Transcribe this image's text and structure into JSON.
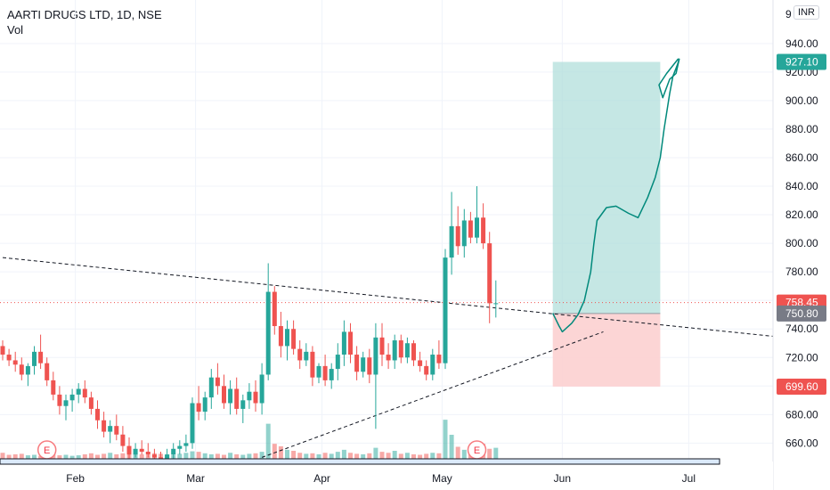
{
  "header": {
    "symbol": "AARTI DRUGS LTD, 1D, NSE",
    "volume_label": "Vol"
  },
  "currency_label": "INR",
  "price_axis_top_partial": "9",
  "colors": {
    "up": "#26a69a",
    "down": "#ef5350",
    "target_zone": "#b2dfdb",
    "stop_zone": "#fcd0d0",
    "last_price_tag": "#ef5350",
    "entry_tag": "#787b86"
  },
  "chart_data": {
    "type": "candlestick",
    "title": "AARTI DRUGS LTD, 1D, NSE",
    "xlabel": "",
    "ylabel": "",
    "ylim": [
      649,
      948
    ],
    "y_ticks": [
      660,
      680,
      700,
      720,
      740,
      760,
      780,
      800,
      820,
      840,
      860,
      880,
      900,
      920,
      940
    ],
    "y_tick_labels": [
      "660.00",
      "680.00",
      "700.00",
      "720.00",
      "740.00",
      "760.00",
      "780.00",
      "800.00",
      "820.00",
      "840.00",
      "860.00",
      "880.00",
      "900.00",
      "920.00",
      "940.00"
    ],
    "x_ticks": [
      "Feb",
      "Mar",
      "Apr",
      "May",
      "Jun",
      "Jul"
    ],
    "x_tick_index": [
      11.5,
      30.5,
      50.5,
      69.5,
      88.5,
      108.5
    ],
    "price_tags": [
      {
        "label": "927.10",
        "value": 927.1,
        "kind": "target"
      },
      {
        "label": "758.45",
        "value": 758.45,
        "kind": "last"
      },
      {
        "label": "750.80",
        "value": 750.8,
        "kind": "entry"
      },
      {
        "label": "699.60",
        "value": 699.6,
        "kind": "stop"
      }
    ],
    "earnings_markers": [
      {
        "label": "E",
        "index": 7
      },
      {
        "label": "E",
        "index": 75
      }
    ],
    "candles": [
      [
        728,
        732,
        718,
        722
      ],
      [
        722,
        726,
        714,
        718
      ],
      [
        718,
        724,
        710,
        715
      ],
      [
        715,
        720,
        704,
        708
      ],
      [
        708,
        716,
        700,
        714
      ],
      [
        714,
        728,
        708,
        724
      ],
      [
        724,
        736,
        712,
        716
      ],
      [
        716,
        720,
        700,
        704
      ],
      [
        704,
        710,
        690,
        694
      ],
      [
        694,
        700,
        680,
        686
      ],
      [
        686,
        694,
        676,
        690
      ],
      [
        690,
        698,
        682,
        694
      ],
      [
        694,
        702,
        688,
        698
      ],
      [
        698,
        704,
        688,
        692
      ],
      [
        692,
        696,
        680,
        684
      ],
      [
        684,
        690,
        670,
        676
      ],
      [
        676,
        682,
        664,
        668
      ],
      [
        668,
        676,
        660,
        672
      ],
      [
        672,
        680,
        662,
        666
      ],
      [
        666,
        672,
        654,
        658
      ],
      [
        658,
        664,
        648,
        652
      ],
      [
        652,
        660,
        650,
        656
      ],
      [
        656,
        662,
        652,
        654
      ],
      [
        654,
        660,
        650,
        652
      ],
      [
        652,
        656,
        648,
        650
      ],
      [
        650,
        654,
        646,
        648
      ],
      [
        648,
        656,
        646,
        652
      ],
      [
        652,
        660,
        648,
        656
      ],
      [
        656,
        662,
        652,
        658
      ],
      [
        658,
        666,
        654,
        660
      ],
      [
        660,
        692,
        656,
        688
      ],
      [
        688,
        700,
        676,
        682
      ],
      [
        682,
        696,
        676,
        692
      ],
      [
        692,
        712,
        684,
        706
      ],
      [
        706,
        716,
        694,
        700
      ],
      [
        700,
        708,
        684,
        688
      ],
      [
        688,
        704,
        680,
        698
      ],
      [
        698,
        706,
        680,
        684
      ],
      [
        684,
        694,
        674,
        690
      ],
      [
        690,
        702,
        684,
        696
      ],
      [
        696,
        704,
        682,
        688
      ],
      [
        688,
        716,
        680,
        708
      ],
      [
        708,
        786,
        704,
        766
      ],
      [
        766,
        770,
        736,
        742
      ],
      [
        742,
        752,
        720,
        728
      ],
      [
        728,
        746,
        718,
        740
      ],
      [
        740,
        746,
        722,
        726
      ],
      [
        726,
        732,
        712,
        718
      ],
      [
        718,
        730,
        714,
        724
      ],
      [
        724,
        728,
        700,
        706
      ],
      [
        706,
        716,
        702,
        714
      ],
      [
        714,
        722,
        700,
        704
      ],
      [
        704,
        716,
        698,
        712
      ],
      [
        712,
        730,
        704,
        722
      ],
      [
        722,
        746,
        714,
        738
      ],
      [
        738,
        744,
        716,
        722
      ],
      [
        722,
        728,
        704,
        710
      ],
      [
        710,
        724,
        706,
        720
      ],
      [
        720,
        726,
        702,
        708
      ],
      [
        708,
        744,
        670,
        734
      ],
      [
        734,
        744,
        714,
        722
      ],
      [
        722,
        730,
        712,
        718
      ],
      [
        718,
        736,
        712,
        732
      ],
      [
        732,
        736,
        716,
        720
      ],
      [
        720,
        734,
        716,
        730
      ],
      [
        730,
        732,
        714,
        718
      ],
      [
        718,
        724,
        710,
        714
      ],
      [
        714,
        718,
        704,
        708
      ],
      [
        708,
        726,
        704,
        722
      ],
      [
        722,
        732,
        712,
        716
      ],
      [
        716,
        796,
        712,
        790
      ],
      [
        790,
        836,
        778,
        812
      ],
      [
        812,
        826,
        792,
        798
      ],
      [
        798,
        824,
        790,
        816
      ],
      [
        816,
        822,
        800,
        804
      ],
      [
        804,
        840,
        800,
        818
      ],
      [
        818,
        828,
        796,
        800
      ],
      [
        800,
        808,
        744,
        758
      ],
      [
        758,
        774,
        748,
        758
      ]
    ],
    "volumes": [
      12,
      8,
      9,
      10,
      7,
      8,
      6,
      9,
      10,
      7,
      8,
      6,
      7,
      9,
      11,
      8,
      10,
      12,
      9,
      11,
      14,
      10,
      9,
      8,
      11,
      10,
      9,
      8,
      10,
      12,
      15,
      14,
      11,
      9,
      10,
      8,
      12,
      9,
      8,
      10,
      11,
      14,
      70,
      30,
      25,
      18,
      16,
      12,
      10,
      11,
      9,
      12,
      10,
      14,
      18,
      12,
      10,
      9,
      11,
      22,
      14,
      12,
      16,
      10,
      12,
      9,
      8,
      10,
      12,
      11,
      78,
      48,
      24,
      18,
      14,
      16,
      30,
      20,
      22
    ],
    "trendlines": [
      {
        "name": "descending",
        "from": [
          0,
          790
        ],
        "to": [
          137,
          728
        ]
      },
      {
        "name": "ascending",
        "from": [
          41,
          650
        ],
        "to": [
          95,
          738
        ]
      }
    ],
    "position": {
      "target": 927.1,
      "entry": 750.8,
      "stop": 699.6,
      "from_index": 87,
      "to_index": 104
    },
    "drawing_path_points": [
      [
        87,
        751
      ],
      [
        88,
        742
      ],
      [
        88.5,
        738
      ],
      [
        90,
        744
      ],
      [
        91,
        750
      ],
      [
        92,
        760
      ],
      [
        93,
        780
      ],
      [
        93.5,
        800
      ],
      [
        94,
        816
      ],
      [
        95.5,
        825
      ],
      [
        97,
        826
      ],
      [
        99,
        821
      ],
      [
        100.5,
        818
      ],
      [
        102,
        832
      ],
      [
        103.2,
        846
      ],
      [
        104,
        860
      ],
      [
        104.6,
        880
      ],
      [
        105.5,
        905
      ],
      [
        106,
        917
      ],
      [
        106.7,
        925
      ],
      [
        107,
        929
      ],
      [
        106.5,
        919
      ],
      [
        105.5,
        915
      ],
      [
        104.4,
        902
      ],
      [
        103.8,
        911
      ],
      [
        105,
        919
      ],
      [
        106.8,
        929
      ],
      [
        107,
        929
      ]
    ]
  }
}
